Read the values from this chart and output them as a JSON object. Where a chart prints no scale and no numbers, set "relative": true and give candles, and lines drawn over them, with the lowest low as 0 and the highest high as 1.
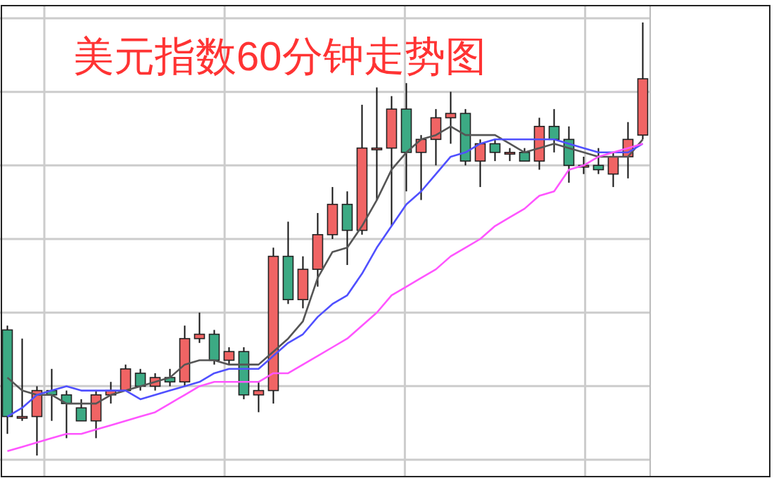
{
  "chart_data": {
    "type": "candlestick",
    "title": "美元指数60分钟走势图",
    "relative": true,
    "grid": true,
    "categories": [
      null,
      null,
      null,
      null,
      null,
      null,
      null,
      null,
      null,
      null,
      null,
      null,
      null,
      null,
      null,
      null,
      null,
      null,
      null,
      null,
      null,
      null,
      null,
      null,
      null,
      null,
      null,
      null,
      null,
      null,
      null,
      null,
      null,
      null,
      null,
      null,
      null,
      null,
      null,
      null,
      null,
      null,
      null,
      null
    ],
    "ohlc": [
      [
        0.29,
        0.3,
        0.05,
        0.09
      ],
      [
        0.09,
        0.27,
        0.08,
        0.09
      ],
      [
        0.09,
        0.16,
        0,
        0.15
      ],
      [
        0.15,
        0.2,
        0.08,
        0.14
      ],
      [
        0.14,
        0.15,
        0.04,
        0.12
      ],
      [
        0.11,
        0.13,
        0.08,
        0.08
      ],
      [
        0.08,
        0.15,
        0.04,
        0.14
      ],
      [
        0.14,
        0.17,
        0.12,
        0.15
      ],
      [
        0.15,
        0.21,
        0.15,
        0.2
      ],
      [
        0.19,
        0.2,
        0.15,
        0.16
      ],
      [
        0.16,
        0.19,
        0.15,
        0.18
      ],
      [
        0.18,
        0.2,
        0.16,
        0.17
      ],
      [
        0.17,
        0.3,
        0.16,
        0.27
      ],
      [
        0.27,
        0.33,
        0.26,
        0.28
      ],
      [
        0.28,
        0.29,
        0.21,
        0.22
      ],
      [
        0.22,
        0.25,
        0.21,
        0.24
      ],
      [
        0.24,
        0.25,
        0.13,
        0.14
      ],
      [
        0.14,
        0.17,
        0.1,
        0.15
      ],
      [
        0.15,
        0.48,
        0.12,
        0.46
      ],
      [
        0.46,
        0.54,
        0.35,
        0.36
      ],
      [
        0.36,
        0.46,
        0.34,
        0.43
      ],
      [
        0.43,
        0.56,
        0.39,
        0.51
      ],
      [
        0.51,
        0.62,
        0.5,
        0.58
      ],
      [
        0.58,
        0.61,
        0.44,
        0.52
      ],
      [
        0.52,
        0.81,
        0.51,
        0.71
      ],
      [
        0.71,
        0.85,
        0.59,
        0.71
      ],
      [
        0.71,
        0.83,
        0.53,
        0.8
      ],
      [
        0.8,
        0.86,
        0.61,
        0.7
      ],
      [
        0.7,
        0.74,
        0.59,
        0.73
      ],
      [
        0.73,
        0.8,
        0.67,
        0.78
      ],
      [
        0.78,
        0.84,
        0.72,
        0.79
      ],
      [
        0.79,
        0.8,
        0.67,
        0.68
      ],
      [
        0.68,
        0.73,
        0.62,
        0.72
      ],
      [
        0.72,
        0.73,
        0.68,
        0.7
      ],
      [
        0.7,
        0.71,
        0.68,
        0.7
      ],
      [
        0.7,
        0.71,
        0.68,
        0.68
      ],
      [
        0.68,
        0.78,
        0.66,
        0.76
      ],
      [
        0.76,
        0.8,
        0.7,
        0.73
      ],
      [
        0.73,
        0.76,
        0.63,
        0.67
      ],
      [
        0.67,
        0.69,
        0.65,
        0.67
      ],
      [
        0.67,
        0.71,
        0.65,
        0.66
      ],
      [
        0.65,
        0.7,
        0.62,
        0.69
      ],
      [
        0.69,
        0.77,
        0.64,
        0.73
      ],
      [
        0.74,
        1,
        0.73,
        0.87
      ]
    ],
    "series": [
      {
        "type": "line",
        "color": "#555555",
        "values": [
          0.18,
          0.15,
          0.14,
          0.14,
          0.12,
          0.12,
          0.12,
          0.14,
          0.15,
          0.16,
          0.17,
          0.18,
          0.21,
          0.22,
          0.22,
          0.21,
          0.21,
          0.21,
          0.24,
          0.27,
          0.31,
          0.41,
          0.47,
          0.48,
          0.53,
          0.59,
          0.66,
          0.7,
          0.73,
          0.74,
          0.76,
          0.74,
          0.74,
          0.74,
          0.72,
          0.7,
          0.71,
          0.72,
          0.71,
          0.7,
          0.69,
          0.69,
          0.69,
          0.73
        ]
      },
      {
        "type": "line",
        "color": "#5050ff",
        "values": [
          0.09,
          0.11,
          0.14,
          0.15,
          0.16,
          0.15,
          0.15,
          0.15,
          0.15,
          0.13,
          0.14,
          0.15,
          0.16,
          0.17,
          0.19,
          0.2,
          0.2,
          0.2,
          0.23,
          0.26,
          0.28,
          0.32,
          0.35,
          0.37,
          0.42,
          0.48,
          0.53,
          0.58,
          0.61,
          0.65,
          0.69,
          0.7,
          0.72,
          0.73,
          0.73,
          0.73,
          0.73,
          0.73,
          0.72,
          0.71,
          0.7,
          0.7,
          0.7,
          0.72
        ]
      },
      {
        "type": "line",
        "color": "#ff55ff",
        "values": [
          0.01,
          0.02,
          0.03,
          0.04,
          0.05,
          0.05,
          0.06,
          0.07,
          0.08,
          0.09,
          0.1,
          0.12,
          0.14,
          0.16,
          0.17,
          0.17,
          0.17,
          0.17,
          0.19,
          0.19,
          0.21,
          0.23,
          0.25,
          0.27,
          0.3,
          0.33,
          0.37,
          0.39,
          0.41,
          0.43,
          0.46,
          0.48,
          0.5,
          0.53,
          0.55,
          0.57,
          0.6,
          0.61,
          0.66,
          0.67,
          0.69,
          0.7,
          0.71,
          0.72
        ]
      }
    ]
  }
}
